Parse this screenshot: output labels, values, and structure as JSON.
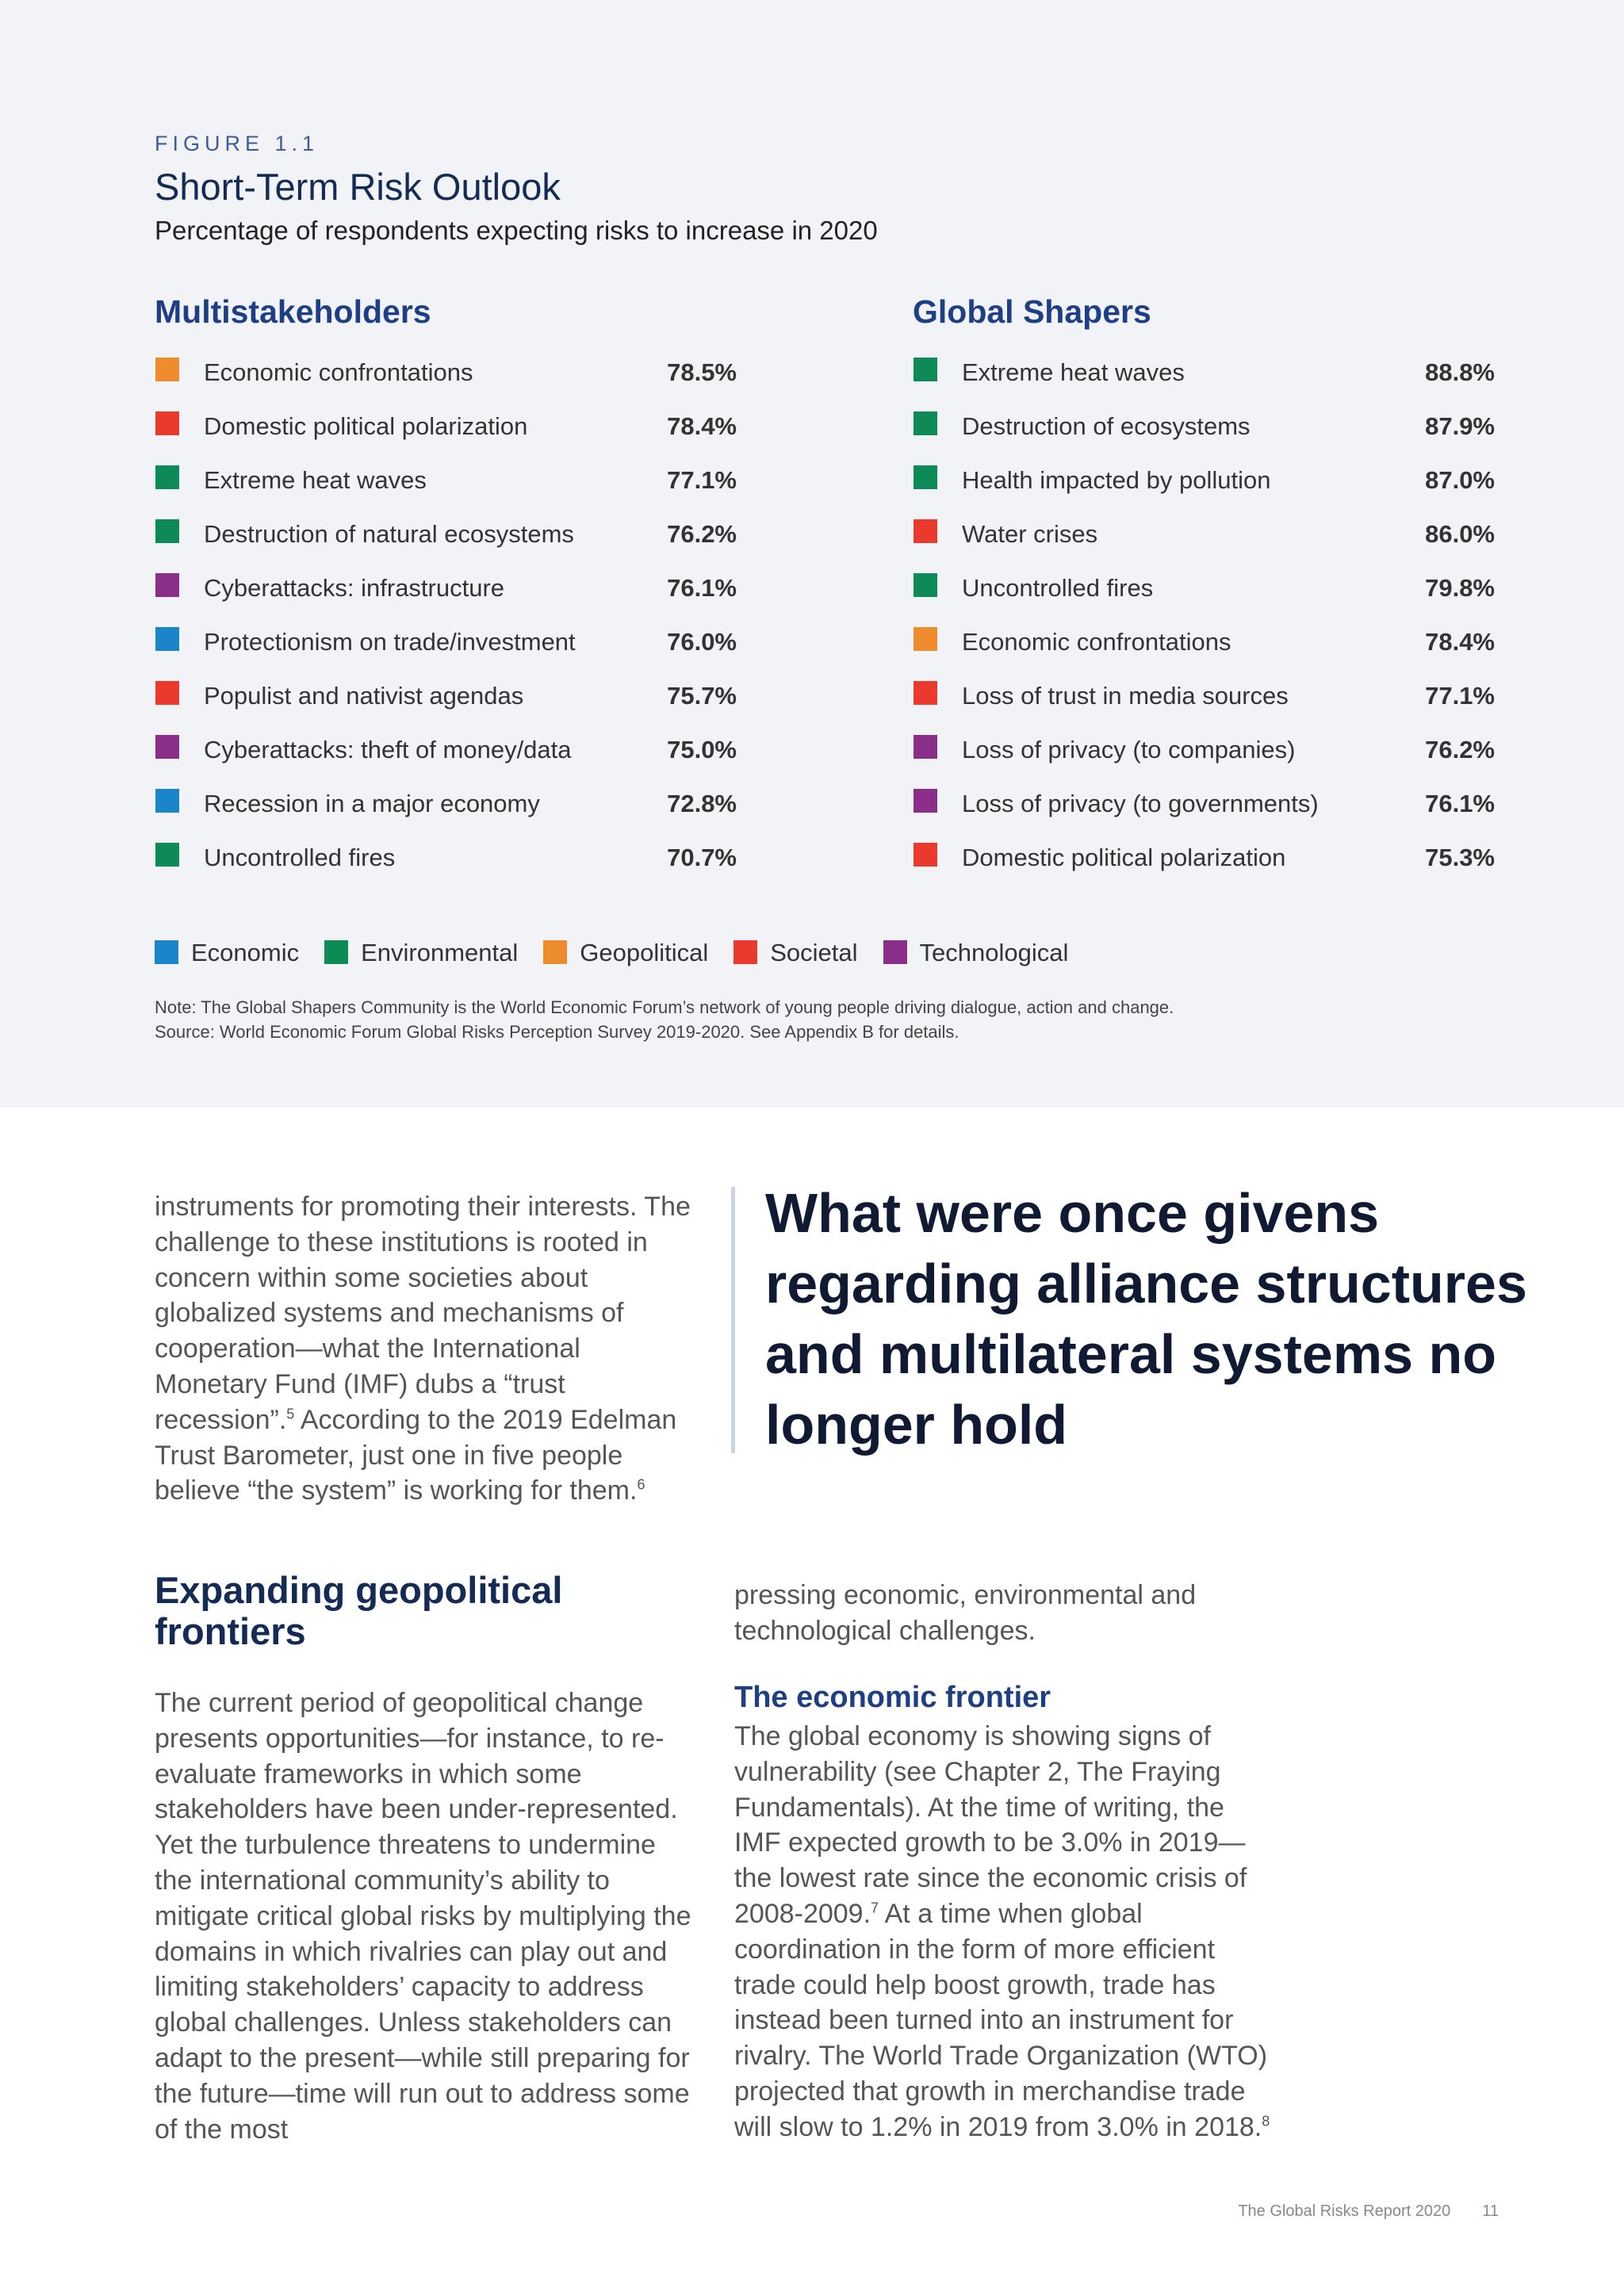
{
  "figure": {
    "label": "FIGURE 1.1",
    "title": "Short-Term Risk Outlook",
    "subtitle": "Percentage of respondents expecting risks to increase in 2020"
  },
  "colors": {
    "Economic": "#1a86c9",
    "Environmental": "#0e8a57",
    "Geopolitical": "#ee8b2d",
    "Societal": "#ea3a2e",
    "Technological": "#8b2e8a"
  },
  "multistakeholders": {
    "heading": "Multistakeholders",
    "risks": [
      {
        "label": "Economic confrontations",
        "value": "78.5%",
        "category": "Geopolitical"
      },
      {
        "label": "Domestic political polarization",
        "value": "78.4%",
        "category": "Societal"
      },
      {
        "label": "Extreme heat waves",
        "value": "77.1%",
        "category": "Environmental"
      },
      {
        "label": "Destruction of natural ecosystems",
        "value": "76.2%",
        "category": "Environmental"
      },
      {
        "label": "Cyberattacks: infrastructure",
        "value": "76.1%",
        "category": "Technological"
      },
      {
        "label": "Protectionism on trade/investment",
        "value": "76.0%",
        "category": "Economic"
      },
      {
        "label": "Populist and nativist agendas",
        "value": "75.7%",
        "category": "Societal"
      },
      {
        "label": "Cyberattacks: theft of money/data",
        "value": "75.0%",
        "category": "Technological"
      },
      {
        "label": "Recession in a major economy",
        "value": "72.8%",
        "category": "Economic"
      },
      {
        "label": "Uncontrolled fires",
        "value": "70.7%",
        "category": "Environmental"
      }
    ]
  },
  "global_shapers": {
    "heading": "Global Shapers",
    "risks": [
      {
        "label": "Extreme heat waves",
        "value": "88.8%",
        "category": "Environmental"
      },
      {
        "label": "Destruction of ecosystems",
        "value": "87.9%",
        "category": "Environmental"
      },
      {
        "label": "Health impacted by pollution",
        "value": "87.0%",
        "category": "Environmental"
      },
      {
        "label": "Water crises",
        "value": "86.0%",
        "category": "Societal"
      },
      {
        "label": "Uncontrolled fires",
        "value": "79.8%",
        "category": "Environmental"
      },
      {
        "label": "Economic confrontations",
        "value": "78.4%",
        "category": "Geopolitical"
      },
      {
        "label": "Loss of trust in media sources",
        "value": "77.1%",
        "category": "Societal"
      },
      {
        "label": "Loss of privacy (to companies)",
        "value": "76.2%",
        "category": "Technological"
      },
      {
        "label": "Loss of privacy (to governments)",
        "value": "76.1%",
        "category": "Technological"
      },
      {
        "label": "Domestic political polarization",
        "value": "75.3%",
        "category": "Societal"
      }
    ]
  },
  "legend": [
    "Economic",
    "Environmental",
    "Geopolitical",
    "Societal",
    "Technological"
  ],
  "note": {
    "line1": "Note: The Global Shapers Community is the World Economic Forum’s network of young people driving dialogue, action and change.",
    "line2": "Source: World Economic Forum Global Risks Perception Survey 2019-2020. See Appendix B for details."
  },
  "body": {
    "para1_a": "instruments for promoting their interests. The challenge to these institutions is rooted in concern within some societies about globalized systems and mechanisms of cooperation—what the International Monetary Fund (IMF) dubs a “trust recession”.",
    "para1_fn1": "5",
    "para1_b": " According to the 2019 Edelman Trust Barometer, just one in five people believe “the system” is working for them.",
    "para1_fn2": "6",
    "pull_quote": "What were once givens regarding alliance structures and multilateral systems no longer hold",
    "section_heading": "Expanding geopolitical frontiers",
    "para2": "The current period of geopolitical change presents opportunities—for instance, to re-evaluate frameworks in which some stakeholders have been under-represented. Yet the turbulence threatens to undermine the international community’s ability to mitigate critical global risks by multiplying the domains in which rivalries can play out and limiting stakeholders’ capacity to address global challenges. Unless stakeholders can adapt to the present—while still preparing for the future—time will run out to address some of the most",
    "para3": "pressing economic, environmental and technological challenges.",
    "subheading": "The economic frontier",
    "para4_a": "The global economy is showing signs of vulnerability (see Chapter 2, The Fraying Fundamentals). At the time of writing, the IMF expected growth to be 3.0% in 2019—the lowest rate since the economic crisis of 2008-2009.",
    "para4_fn1": "7",
    "para4_b": " At a time when global coordination in the form of more efficient trade could help boost growth, trade has instead been turned into an instrument for rivalry. The World Trade Organization (WTO) projected that growth in merchandise trade will slow to 1.2% in 2019 from 3.0% in 2018.",
    "para4_fn2": "8"
  },
  "footer": {
    "report": "The Global Risks Report 2020",
    "page": "11"
  }
}
